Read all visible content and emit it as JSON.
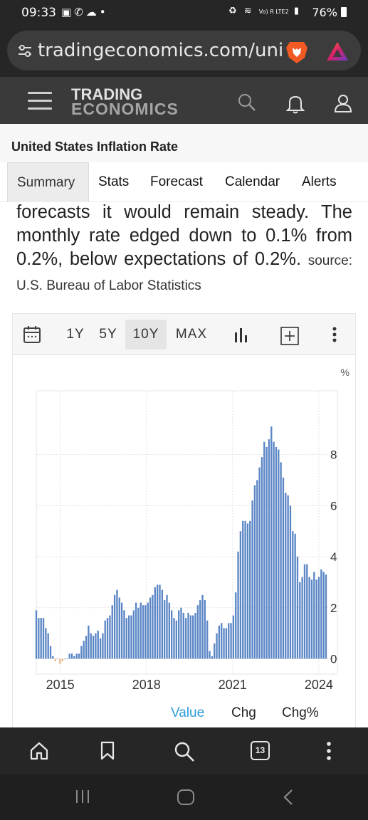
{
  "status_bar": {
    "time": "09:33",
    "left_icons": [
      "image-icon",
      "call-icon",
      "cloud-icon",
      "dot-icon"
    ],
    "right_icons": [
      "recycle-icon",
      "wifi-icon",
      "volte-icon",
      "signal-icon"
    ],
    "volte_text": "Vo) R LTE2",
    "battery": "76%"
  },
  "browser": {
    "url": "tradingeconomics.com/uni",
    "brave_icon": "brave-lion-icon",
    "rewards_icon": "brave-rewards-triangle-icon"
  },
  "site_header": {
    "logo_line1": "TRADING",
    "logo_line2": "ECONOMICS"
  },
  "page": {
    "title": "United States Inflation Rate"
  },
  "tabs": [
    {
      "label": "Summary",
      "active": true
    },
    {
      "label": "Stats",
      "active": false
    },
    {
      "label": "Forecast",
      "active": false
    },
    {
      "label": "Calendar",
      "active": false
    },
    {
      "label": "Alerts",
      "active": false
    }
  ],
  "description": {
    "text": "forecasts it would remain steady. The monthly rate edged down to 0.1% from 0.2%, below expectations of 0.2%.",
    "source": "source: U.S. Bureau of Labor Statistics"
  },
  "chart_toolbar": {
    "ranges": [
      {
        "label": "1Y",
        "active": false
      },
      {
        "label": "5Y",
        "active": false
      },
      {
        "label": "10Y",
        "active": true
      },
      {
        "label": "MAX",
        "active": false
      }
    ]
  },
  "chart_data": {
    "type": "bar",
    "unit_label": "%",
    "x_start": "2014-03",
    "x_end": "2024-04",
    "x_ticks": [
      "2015",
      "2018",
      "2021",
      "2024"
    ],
    "y_ticks": [
      "0",
      "2",
      "4",
      "6",
      "8"
    ],
    "ylim": [
      -0.6,
      10.5
    ],
    "grid": true,
    "bar_color": "#5b86c5",
    "negative_bar_color": "#e8b98c",
    "values": [
      1.9,
      1.6,
      1.6,
      1.6,
      1.2,
      1.0,
      0.5,
      0.1,
      -0.1,
      0.0,
      -0.2,
      -0.1,
      0.0,
      0.0,
      0.2,
      0.2,
      0.1,
      0.2,
      0.2,
      0.5,
      0.7,
      0.9,
      1.3,
      1.0,
      0.9,
      1.0,
      1.1,
      0.8,
      1.0,
      1.5,
      1.6,
      1.7,
      2.1,
      2.5,
      2.7,
      2.4,
      2.2,
      1.9,
      1.6,
      1.7,
      1.7,
      1.9,
      2.2,
      2.0,
      2.2,
      2.1,
      2.1,
      2.2,
      2.4,
      2.5,
      2.8,
      2.9,
      2.9,
      2.7,
      2.3,
      2.5,
      2.2,
      1.9,
      1.6,
      1.5,
      1.9,
      2.0,
      1.8,
      1.6,
      1.8,
      1.7,
      1.7,
      1.8,
      2.1,
      2.3,
      2.5,
      2.3,
      1.5,
      0.3,
      0.1,
      0.6,
      1.0,
      1.3,
      1.4,
      1.2,
      1.2,
      1.4,
      1.4,
      1.7,
      2.6,
      4.2,
      5.0,
      5.4,
      5.4,
      5.3,
      5.4,
      6.2,
      6.8,
      7.0,
      7.5,
      7.9,
      8.5,
      8.3,
      8.6,
      9.1,
      8.5,
      8.3,
      8.2,
      7.7,
      7.1,
      6.5,
      6.4,
      6.0,
      5.0,
      4.9,
      4.0,
      3.0,
      3.2,
      3.7,
      3.7,
      3.2,
      3.1,
      3.4,
      3.1,
      3.2,
      3.5,
      3.4,
      3.3
    ]
  },
  "value_tabs": [
    {
      "label": "Value",
      "active": true
    },
    {
      "label": "Chg",
      "active": false
    },
    {
      "label": "Chg%",
      "active": false
    }
  ],
  "browser_bottom": {
    "tab_count": "13"
  },
  "colors": {
    "accent_blue": "#2d9bd8",
    "dark_bar": "#262626"
  }
}
